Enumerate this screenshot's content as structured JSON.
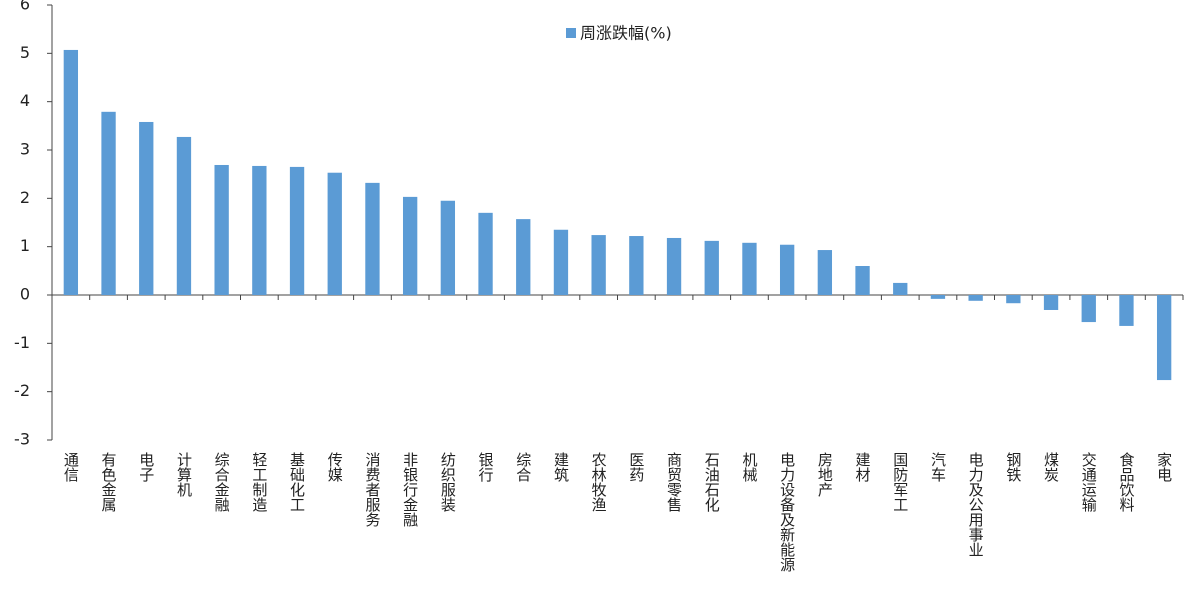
{
  "chart_data": {
    "type": "bar",
    "categories": [
      "通信",
      "有色金属",
      "电子",
      "计算机",
      "综合金融",
      "轻工制造",
      "基础化工",
      "传媒",
      "消费者服务",
      "非银行金融",
      "纺织服装",
      "银行",
      "综合",
      "建筑",
      "农林牧渔",
      "医药",
      "商贸零售",
      "石油石化",
      "机械",
      "电力设备及新能源",
      "房地产",
      "建材",
      "国防军工",
      "汽车",
      "电力及公用事业",
      "钢铁",
      "煤炭",
      "交通运输",
      "食品饮料",
      "家电"
    ],
    "series": [
      {
        "name": "周涨跌幅(%)",
        "color": "#5b9bd5",
        "values": [
          5.07,
          3.79,
          3.58,
          3.27,
          2.69,
          2.67,
          2.65,
          2.53,
          2.32,
          2.03,
          1.95,
          1.7,
          1.57,
          1.35,
          1.24,
          1.22,
          1.18,
          1.12,
          1.08,
          1.04,
          0.93,
          0.6,
          0.25,
          -0.08,
          -0.12,
          -0.17,
          -0.31,
          -0.56,
          -0.64,
          -1.76
        ]
      }
    ],
    "ylim": [
      -3,
      6
    ],
    "yticks": [
      -3,
      -2,
      -1,
      0,
      1,
      2,
      3,
      4,
      5,
      6
    ],
    "legend": "top"
  }
}
